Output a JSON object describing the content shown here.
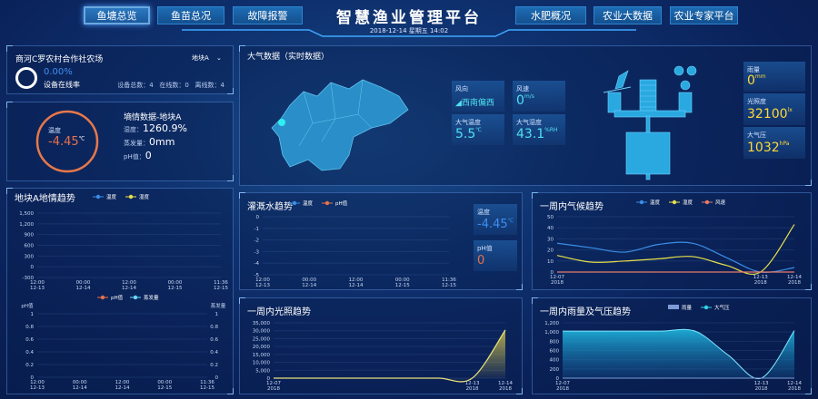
{
  "header": {
    "title": "智慧渔业管理平台",
    "datetime": "2018-12-14  星期五  14:02",
    "nav_left": [
      "鱼塘总览",
      "鱼苗总况",
      "故障报警"
    ],
    "nav_right": [
      "水肥概况",
      "农业大数据",
      "农业专家平台"
    ],
    "active": "鱼塘总览"
  },
  "farm": {
    "name": "商河C罗农村合作社农场",
    "plot_select": "地块A",
    "online_rate": "0.00%",
    "online_rate_value": 0,
    "online_label": "设备在线率",
    "stats": "设备总数：4   在线数：0   离线数：4"
  },
  "soil": {
    "ring_label": "温度",
    "temp": "-4.45",
    "temp_unit": "℃",
    "title": "墒情数据-地块A",
    "humidity_label": "湿度：",
    "humidity": "1260.9%",
    "evap_label": "蒸发量：",
    "evap": "0mm",
    "ph_label": "pH值：",
    "ph": "0"
  },
  "atmosphere": {
    "title": "大气数据（实时数据）",
    "wind_dir_label": "风向",
    "wind_dir": "西南偏西",
    "wind_speed_label": "风速",
    "wind_speed": "0",
    "wind_speed_unit": "m/s",
    "air_temp_label": "大气温度",
    "air_temp": "5.5",
    "air_temp_unit": "℃",
    "air_hum_label": "大气湿度",
    "air_hum": "43.1",
    "air_hum_unit": "%RH",
    "rain_label": "雨量",
    "rain": "0",
    "rain_unit": "mm",
    "light_label": "光照度",
    "light": "32100",
    "light_unit": "lx",
    "pressure_label": "大气压",
    "pressure": "1032",
    "pressure_unit": "hPa"
  },
  "irrigation_side": {
    "temp_label": "温度",
    "temp": "-4.45",
    "temp_unit": "℃",
    "ph_label": "pH值",
    "ph": "0"
  },
  "colors": {
    "accent": "#2b78c0",
    "temp": "#3a8ee6",
    "humidity": "#e8e04a",
    "wind": "#e87a6a",
    "ph": "#e8704a",
    "evap": "#6ad8ff",
    "pressure": "#2fd6e8",
    "rain": "#7e9bd8",
    "ring_online": "#ffffff",
    "ring_temp": "#e8784a"
  },
  "chart_data": [
    {
      "key": "soil_trend",
      "type": "line",
      "title": "地块A地情趋势",
      "legend": [
        "温度",
        "湿度"
      ],
      "ylim": [
        -300,
        1500
      ],
      "y_ticks": [
        "1,500",
        "1,200",
        "900",
        "600",
        "300",
        "0",
        "-300"
      ],
      "x_labels": [
        [
          "12:00",
          "12-13"
        ],
        [
          "00:00",
          "12-14"
        ],
        [
          "12:00",
          "12-14"
        ],
        [
          "00:00",
          "12-15"
        ],
        [
          "11:36",
          "12-15"
        ]
      ],
      "series": []
    },
    {
      "key": "ph_evap",
      "type": "line",
      "legend": [
        "pH值",
        "蒸发量"
      ],
      "ylabel_left": "pH值",
      "ylabel_right": "蒸发量",
      "ylim": [
        0,
        1
      ],
      "y_ticks": [
        "1",
        "0.8",
        "0.6",
        "0.4",
        "0.2",
        "0"
      ],
      "x_labels": [
        [
          "12:00",
          "12-13"
        ],
        [
          "00:00",
          "12-14"
        ],
        [
          "12:00",
          "12-14"
        ],
        [
          "00:00",
          "12-15"
        ],
        [
          "11:36",
          "12-15"
        ]
      ],
      "series": []
    },
    {
      "key": "irrigation",
      "type": "line",
      "title": "灌溉水趋势",
      "legend": [
        "温度",
        "pH值"
      ],
      "ylim": [
        -5,
        0
      ],
      "y_ticks": [
        "0",
        "-1",
        "-2",
        "-3",
        "-4",
        "-5"
      ],
      "x_labels": [
        [
          "12:00",
          "12-13"
        ],
        [
          "00:00",
          "12-14"
        ],
        [
          "12:00",
          "12-14"
        ],
        [
          "00:00",
          "12-15"
        ],
        [
          "11:36",
          "12-15"
        ]
      ],
      "series": []
    },
    {
      "key": "climate",
      "type": "line",
      "title": "一周内气候趋势",
      "legend": [
        "温度",
        "湿度",
        "风速"
      ],
      "ylim": [
        0,
        50
      ],
      "y_ticks": [
        "50",
        "40",
        "30",
        "20",
        "10",
        "0"
      ],
      "x_labels": [
        [
          "12-07",
          "2018"
        ],
        [],
        [],
        [],
        [],
        [],
        [
          "12-13",
          "2018"
        ],
        [
          "12-14",
          "2018"
        ]
      ],
      "series": [
        {
          "name": "温度",
          "values": [
            26,
            22,
            18,
            25,
            26,
            13,
            0,
            4
          ]
        },
        {
          "name": "湿度",
          "values": [
            15,
            9,
            10,
            12,
            14,
            6,
            0,
            43
          ]
        },
        {
          "name": "风速",
          "values": [
            0,
            0,
            0,
            0,
            0,
            0,
            0,
            0
          ]
        }
      ]
    },
    {
      "key": "light",
      "type": "area",
      "title": "一周内光照趋势",
      "ylim": [
        0,
        35000
      ],
      "y_ticks": [
        "35,000",
        "30,000",
        "25,000",
        "20,000",
        "15,000",
        "10,000",
        "5,000",
        "0"
      ],
      "x_labels": [
        [
          "12-07",
          "2018"
        ],
        [],
        [],
        [],
        [],
        [],
        [
          "12-13",
          "2018"
        ],
        [
          "12-14",
          "2018"
        ]
      ],
      "series": [
        {
          "values": [
            0,
            0,
            0,
            0,
            0,
            0,
            0,
            30500
          ]
        }
      ]
    },
    {
      "key": "rain_pressure",
      "type": "area",
      "title": "一周内雨量及气压趋势",
      "legend": [
        "雨量",
        "大气压"
      ],
      "ylim": [
        0,
        1200
      ],
      "y_ticks": [
        "1,200",
        "1,000",
        "800",
        "600",
        "400",
        "200",
        "0"
      ],
      "x_labels": [
        [
          "12-07",
          "2018"
        ],
        [],
        [],
        [],
        [],
        [],
        [
          "12-13",
          "2018"
        ],
        [
          "12-14",
          "2018"
        ]
      ],
      "series": [
        {
          "name": "雨量",
          "values": [
            0,
            0,
            0,
            0,
            0,
            0,
            0,
            0
          ]
        },
        {
          "name": "大气压",
          "values": [
            1020,
            1020,
            1020,
            1020,
            1020,
            500,
            0,
            1032
          ]
        }
      ]
    }
  ]
}
